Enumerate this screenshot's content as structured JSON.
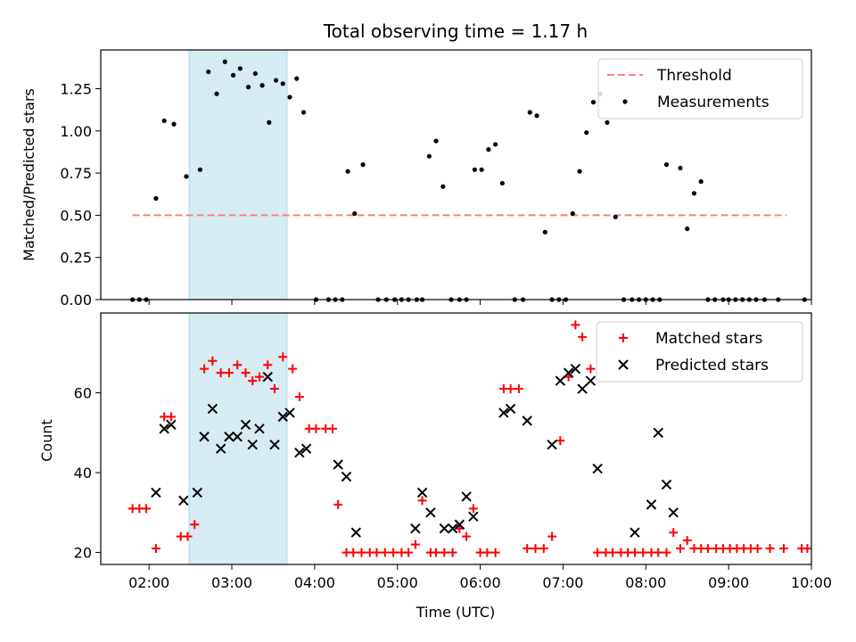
{
  "colors": {
    "threshold": "#ff7f7f",
    "measurement": "#000000",
    "matched": "#ff0000",
    "predicted": "#000000",
    "observing_window": "#add8e6"
  },
  "chart_data": [
    {
      "type": "scatter",
      "title": "Total observing time = 1.17 h",
      "ylabel": "Matched/Predicted stars",
      "xlabel": "",
      "xlim": [
        "01:25",
        "10:00"
      ],
      "ylim": [
        0,
        1.48
      ],
      "yticks": [
        "0.00",
        "0.25",
        "0.50",
        "0.75",
        "1.00",
        "1.25"
      ],
      "observing_window": [
        "02:29",
        "03:40"
      ],
      "legend_position": "top-right",
      "grid": false,
      "threshold": {
        "name": "Threshold",
        "value": 0.5,
        "x_range": [
          "01:48",
          "09:42"
        ],
        "style": "dashed"
      },
      "series": [
        {
          "name": "Measurements",
          "points": [
            [
              "01:48",
              0
            ],
            [
              "01:53",
              0
            ],
            [
              "01:58",
              0
            ],
            [
              "02:05",
              0.6
            ],
            [
              "02:11",
              1.06
            ],
            [
              "02:18",
              1.04
            ],
            [
              "02:27",
              0.73
            ],
            [
              "02:37",
              0.77
            ],
            [
              "02:43",
              1.35
            ],
            [
              "02:49",
              1.22
            ],
            [
              "02:55",
              1.41
            ],
            [
              "03:01",
              1.33
            ],
            [
              "03:06",
              1.37
            ],
            [
              "03:12",
              1.26
            ],
            [
              "03:17",
              1.34
            ],
            [
              "03:22",
              1.27
            ],
            [
              "03:27",
              1.05
            ],
            [
              "03:32",
              1.3
            ],
            [
              "03:37",
              1.28
            ],
            [
              "03:42",
              1.2
            ],
            [
              "03:47",
              1.31
            ],
            [
              "03:52",
              1.11
            ],
            [
              "04:01",
              0
            ],
            [
              "04:10",
              0
            ],
            [
              "04:15",
              0
            ],
            [
              "04:20",
              0
            ],
            [
              "04:24",
              0.76
            ],
            [
              "04:29",
              0.51
            ],
            [
              "04:35",
              0.8
            ],
            [
              "04:46",
              0
            ],
            [
              "04:52",
              0
            ],
            [
              "04:58",
              0
            ],
            [
              "05:03",
              0
            ],
            [
              "05:08",
              0
            ],
            [
              "05:14",
              0
            ],
            [
              "05:18",
              0
            ],
            [
              "05:23",
              0.85
            ],
            [
              "05:28",
              0.94
            ],
            [
              "05:33",
              0.67
            ],
            [
              "05:39",
              0
            ],
            [
              "05:45",
              0
            ],
            [
              "05:50",
              0
            ],
            [
              "05:56",
              0.77
            ],
            [
              "06:01",
              0.77
            ],
            [
              "06:06",
              0.89
            ],
            [
              "06:11",
              0.92
            ],
            [
              "06:16",
              0.69
            ],
            [
              "06:25",
              0
            ],
            [
              "06:31",
              0
            ],
            [
              "06:36",
              1.11
            ],
            [
              "06:41",
              1.09
            ],
            [
              "06:47",
              0.4
            ],
            [
              "06:52",
              0
            ],
            [
              "06:57",
              0
            ],
            [
              "07:02",
              0
            ],
            [
              "07:07",
              0.51
            ],
            [
              "07:12",
              0.76
            ],
            [
              "07:17",
              0.99
            ],
            [
              "07:22",
              1.17
            ],
            [
              "07:27",
              1.22
            ],
            [
              "07:32",
              1.05
            ],
            [
              "07:38",
              0.49
            ],
            [
              "07:44",
              0
            ],
            [
              "07:50",
              0
            ],
            [
              "07:55",
              0
            ],
            [
              "08:00",
              0
            ],
            [
              "08:05",
              0
            ],
            [
              "08:10",
              0
            ],
            [
              "08:15",
              0.8
            ],
            [
              "08:25",
              0.78
            ],
            [
              "08:30",
              0.42
            ],
            [
              "08:35",
              0.63
            ],
            [
              "08:40",
              0.7
            ],
            [
              "08:45",
              0
            ],
            [
              "08:50",
              0
            ],
            [
              "08:56",
              0
            ],
            [
              "09:00",
              0
            ],
            [
              "09:05",
              0
            ],
            [
              "09:10",
              0
            ],
            [
              "09:15",
              0
            ],
            [
              "09:20",
              0
            ],
            [
              "09:26",
              0
            ],
            [
              "09:36",
              0
            ],
            [
              "09:55",
              0
            ]
          ]
        }
      ]
    },
    {
      "type": "scatter",
      "title": "",
      "ylabel": "Count",
      "xlabel": "Time (UTC)",
      "xlim": [
        "01:25",
        "10:00"
      ],
      "ylim": [
        17,
        80
      ],
      "yticks": [
        "20",
        "40",
        "60"
      ],
      "xticks": [
        "02:00",
        "03:00",
        "04:00",
        "05:00",
        "06:00",
        "07:00",
        "08:00",
        "09:00",
        "10:00"
      ],
      "observing_window": [
        "02:29",
        "03:40"
      ],
      "legend_position": "top-right",
      "grid": false,
      "series": [
        {
          "name": "Matched stars",
          "marker": "plus",
          "points": [
            [
              "01:48",
              31
            ],
            [
              "01:53",
              31
            ],
            [
              "01:58",
              31
            ],
            [
              "02:05",
              21
            ],
            [
              "02:11",
              54
            ],
            [
              "02:16",
              54
            ],
            [
              "02:23",
              24
            ],
            [
              "02:28",
              24
            ],
            [
              "02:33",
              27
            ],
            [
              "02:40",
              66
            ],
            [
              "02:46",
              68
            ],
            [
              "02:52",
              65
            ],
            [
              "02:58",
              65
            ],
            [
              "03:04",
              67
            ],
            [
              "03:10",
              65
            ],
            [
              "03:15",
              63
            ],
            [
              "03:20",
              64
            ],
            [
              "03:26",
              67
            ],
            [
              "03:31",
              61
            ],
            [
              "03:37",
              69
            ],
            [
              "03:44",
              66
            ],
            [
              "03:49",
              59
            ],
            [
              "03:56",
              51
            ],
            [
              "04:01",
              51
            ],
            [
              "04:08",
              51
            ],
            [
              "04:13",
              51
            ],
            [
              "04:17",
              32
            ],
            [
              "04:23",
              20
            ],
            [
              "04:28",
              20
            ],
            [
              "04:34",
              20
            ],
            [
              "04:40",
              20
            ],
            [
              "04:45",
              20
            ],
            [
              "04:51",
              20
            ],
            [
              "04:57",
              20
            ],
            [
              "05:03",
              20
            ],
            [
              "05:08",
              20
            ],
            [
              "05:13",
              22
            ],
            [
              "05:18",
              33
            ],
            [
              "05:24",
              20
            ],
            [
              "05:28",
              20
            ],
            [
              "05:34",
              20
            ],
            [
              "05:40",
              20
            ],
            [
              "05:45",
              26
            ],
            [
              "05:50",
              24
            ],
            [
              "05:55",
              31
            ],
            [
              "06:00",
              20
            ],
            [
              "06:05",
              20
            ],
            [
              "06:11",
              20
            ],
            [
              "06:17",
              61
            ],
            [
              "06:22",
              61
            ],
            [
              "06:28",
              61
            ],
            [
              "06:34",
              21
            ],
            [
              "06:40",
              21
            ],
            [
              "06:46",
              21
            ],
            [
              "06:52",
              24
            ],
            [
              "06:58",
              48
            ],
            [
              "07:04",
              64
            ],
            [
              "07:09",
              77
            ],
            [
              "07:14",
              74
            ],
            [
              "07:20",
              66
            ],
            [
              "07:25",
              20
            ],
            [
              "07:31",
              20
            ],
            [
              "07:36",
              20
            ],
            [
              "07:42",
              20
            ],
            [
              "07:47",
              20
            ],
            [
              "07:52",
              20
            ],
            [
              "07:58",
              20
            ],
            [
              "08:04",
              20
            ],
            [
              "08:09",
              20
            ],
            [
              "08:15",
              20
            ],
            [
              "08:20",
              25
            ],
            [
              "08:25",
              21
            ],
            [
              "08:30",
              23
            ],
            [
              "08:35",
              21
            ],
            [
              "08:40",
              21
            ],
            [
              "08:45",
              21
            ],
            [
              "08:51",
              21
            ],
            [
              "08:56",
              21
            ],
            [
              "09:01",
              21
            ],
            [
              "09:06",
              21
            ],
            [
              "09:11",
              21
            ],
            [
              "09:16",
              21
            ],
            [
              "09:21",
              21
            ],
            [
              "09:30",
              21
            ],
            [
              "09:40",
              21
            ],
            [
              "09:53",
              21
            ],
            [
              "09:57",
              21
            ]
          ]
        },
        {
          "name": "Predicted stars",
          "marker": "x",
          "points": [
            [
              "02:05",
              35
            ],
            [
              "02:11",
              51
            ],
            [
              "02:16",
              52
            ],
            [
              "02:25",
              33
            ],
            [
              "02:35",
              35
            ],
            [
              "02:40",
              49
            ],
            [
              "02:46",
              56
            ],
            [
              "02:52",
              46
            ],
            [
              "02:58",
              49
            ],
            [
              "03:04",
              49
            ],
            [
              "03:10",
              52
            ],
            [
              "03:15",
              47
            ],
            [
              "03:20",
              51
            ],
            [
              "03:26",
              64
            ],
            [
              "03:31",
              47
            ],
            [
              "03:37",
              54
            ],
            [
              "03:42",
              55
            ],
            [
              "03:49",
              45
            ],
            [
              "03:54",
              46
            ],
            [
              "04:17",
              42
            ],
            [
              "04:23",
              39
            ],
            [
              "04:30",
              25
            ],
            [
              "05:13",
              26
            ],
            [
              "05:18",
              35
            ],
            [
              "05:24",
              30
            ],
            [
              "05:34",
              26
            ],
            [
              "05:40",
              26
            ],
            [
              "05:45",
              27
            ],
            [
              "05:50",
              34
            ],
            [
              "05:55",
              29
            ],
            [
              "06:17",
              55
            ],
            [
              "06:22",
              56
            ],
            [
              "06:34",
              53
            ],
            [
              "06:52",
              47
            ],
            [
              "06:58",
              63
            ],
            [
              "07:04",
              65
            ],
            [
              "07:09",
              66
            ],
            [
              "07:14",
              61
            ],
            [
              "07:20",
              63
            ],
            [
              "07:25",
              41
            ],
            [
              "07:52",
              25
            ],
            [
              "08:04",
              32
            ],
            [
              "08:09",
              50
            ],
            [
              "08:15",
              37
            ],
            [
              "08:20",
              30
            ]
          ]
        }
      ]
    }
  ]
}
